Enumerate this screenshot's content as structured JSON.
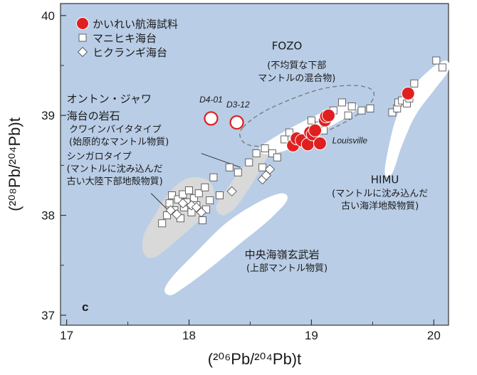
{
  "colors": {
    "plot_bg": "#b9cde6",
    "kaireii": "#e02020",
    "white_field": "#ffffff",
    "gray_field": "#d9d9d9",
    "axis": "#333333"
  },
  "chart_data": {
    "type": "scatter",
    "panel_label": "c",
    "xlabel": "(²⁰⁶Pb/²⁰⁴Pb)t",
    "ylabel": "(²⁰⁸Pb/²⁰⁴Pb)t",
    "xlim": [
      16.95,
      20.12
    ],
    "ylim": [
      36.9,
      40.12
    ],
    "x_ticks": [
      17,
      18,
      19,
      20
    ],
    "x_tick_labels": [
      "17",
      "18",
      "19",
      "20"
    ],
    "y_ticks": [
      37,
      38,
      39,
      40
    ],
    "y_tick_labels": [
      "37",
      "38",
      "39",
      "40"
    ],
    "legend": [
      {
        "label": "かいれい航海試料",
        "marker": "filled-circle-red"
      },
      {
        "label": "マニヒキ海台",
        "marker": "open-square"
      },
      {
        "label": "ヒクランギ海台",
        "marker": "open-diamond"
      }
    ],
    "series": [
      {
        "name": "かいれい航海試料",
        "marker": "circle",
        "points": [
          [
            18.85,
            38.7
          ],
          [
            18.88,
            38.77
          ],
          [
            18.92,
            38.75
          ],
          [
            18.97,
            38.71
          ],
          [
            18.99,
            38.83
          ],
          [
            19.01,
            38.81
          ],
          [
            19.03,
            38.85
          ],
          [
            19.07,
            38.72
          ],
          [
            19.11,
            38.95
          ],
          [
            19.12,
            38.99
          ],
          [
            19.14,
            39.0
          ],
          [
            19.79,
            39.22
          ]
        ],
        "open_points": [
          [
            18.18,
            38.97
          ],
          [
            18.39,
            38.93
          ]
        ]
      },
      {
        "name": "マニヒキ海台",
        "marker": "square",
        "points": [
          [
            17.78,
            37.92
          ],
          [
            17.82,
            38.0
          ],
          [
            17.84,
            38.12
          ],
          [
            17.86,
            38.2
          ],
          [
            17.88,
            38.05
          ],
          [
            17.91,
            38.16
          ],
          [
            17.93,
            37.97
          ],
          [
            17.95,
            38.21
          ],
          [
            17.96,
            38.08
          ],
          [
            17.98,
            38.13
          ],
          [
            18.0,
            38.25
          ],
          [
            18.02,
            38.03
          ],
          [
            18.04,
            38.17
          ],
          [
            18.06,
            38.1
          ],
          [
            18.08,
            38.22
          ],
          [
            18.11,
            37.95
          ],
          [
            18.14,
            38.06
          ],
          [
            18.17,
            38.15
          ],
          [
            18.13,
            38.28
          ],
          [
            18.2,
            38.38
          ],
          [
            18.25,
            38.2
          ],
          [
            18.33,
            38.48
          ],
          [
            18.4,
            38.43
          ],
          [
            18.49,
            38.53
          ],
          [
            18.55,
            38.62
          ],
          [
            18.6,
            38.48
          ],
          [
            18.62,
            38.67
          ],
          [
            18.68,
            38.62
          ],
          [
            18.72,
            38.58
          ],
          [
            18.78,
            38.76
          ],
          [
            18.82,
            38.83
          ],
          [
            19.0,
            38.95
          ],
          [
            19.06,
            38.9
          ],
          [
            19.1,
            38.85
          ],
          [
            19.18,
            39.05
          ],
          [
            19.25,
            39.13
          ],
          [
            19.3,
            39.0
          ],
          [
            19.33,
            39.09
          ],
          [
            19.41,
            39.05
          ],
          [
            19.48,
            39.07
          ],
          [
            19.66,
            39.03
          ],
          [
            19.7,
            39.07
          ],
          [
            19.71,
            39.13
          ],
          [
            19.74,
            39.15
          ],
          [
            19.78,
            39.12
          ],
          [
            19.8,
            39.17
          ],
          [
            19.84,
            39.32
          ],
          [
            20.02,
            39.55
          ],
          [
            20.07,
            39.48
          ]
        ]
      },
      {
        "name": "ヒクランギ海台",
        "marker": "diamond",
        "points": [
          [
            17.85,
            38.05
          ],
          [
            17.9,
            38.01
          ],
          [
            17.95,
            38.12
          ],
          [
            18.02,
            38.1
          ],
          [
            18.06,
            38.08
          ],
          [
            18.1,
            38.03
          ],
          [
            18.35,
            38.24
          ],
          [
            18.6,
            38.36
          ],
          [
            18.63,
            38.4
          ],
          [
            18.66,
            38.46
          ]
        ]
      }
    ],
    "point_labels": [
      {
        "text": "D4-01",
        "x": 18.18,
        "y": 39.13
      },
      {
        "text": "D3-12",
        "x": 18.4,
        "y": 39.08
      }
    ],
    "annotations": [
      {
        "lines": [
          "FOZO"
        ],
        "x": 18.8,
        "y": 39.66,
        "size": "lg",
        "anchor": "middle"
      },
      {
        "lines": [
          "(不均質な下部",
          "マントルの混合物)"
        ],
        "x": 18.88,
        "y": 39.47,
        "size": "md",
        "anchor": "middle",
        "line_h": 0.125
      },
      {
        "lines": [
          "オントン・ジャワ",
          "海台の岩石"
        ],
        "x": 17.0,
        "y": 39.13,
        "size": "lg",
        "anchor": "start",
        "line_h": 0.17
      },
      {
        "lines": [
          "クワインバイタタイプ",
          "(始原的なマントル物質)"
        ],
        "x": 17.02,
        "y": 38.83,
        "size": "md",
        "anchor": "start",
        "line_h": 0.125
      },
      {
        "lines": [
          "シンガロタイプ",
          "(マントルに沈み込んだ",
          "古い大陸下部地殻物質)"
        ],
        "x": 17.0,
        "y": 38.56,
        "size": "md",
        "anchor": "start",
        "line_h": 0.125
      },
      {
        "lines": [
          "Louisville"
        ],
        "x": 19.17,
        "y": 38.72,
        "size": "it",
        "anchor": "start"
      },
      {
        "lines": [
          "HIMU"
        ],
        "x": 19.6,
        "y": 38.32,
        "size": "lg",
        "anchor": "middle"
      },
      {
        "lines": [
          "(マントルに沈み込んだ",
          "古い海洋地殻物質)"
        ],
        "x": 19.56,
        "y": 38.19,
        "size": "md",
        "anchor": "middle",
        "line_h": 0.125
      },
      {
        "lines": [
          "中央海嶺玄武岩"
        ],
        "x": 18.76,
        "y": 37.57,
        "size": "lg",
        "anchor": "middle"
      },
      {
        "lines": [
          "(上部マントル物質)"
        ],
        "x": 18.8,
        "y": 37.44,
        "size": "md",
        "anchor": "middle"
      }
    ],
    "fields": [
      {
        "name": "FOZO",
        "style": "dashed-ellipse",
        "outline": [
          [
            18.44,
            38.88
          ],
          [
            18.6,
            39.03
          ],
          [
            18.85,
            39.17
          ],
          [
            19.1,
            39.27
          ],
          [
            19.35,
            39.3
          ],
          [
            19.5,
            39.25
          ],
          [
            19.48,
            39.12
          ],
          [
            19.3,
            38.95
          ],
          [
            19.0,
            38.78
          ],
          [
            18.75,
            38.7
          ],
          [
            18.5,
            38.7
          ],
          [
            18.42,
            38.78
          ]
        ]
      },
      {
        "name": "Louisville",
        "style": "white",
        "outline": [
          [
            18.58,
            38.68
          ],
          [
            18.75,
            38.82
          ],
          [
            18.95,
            38.95
          ],
          [
            19.15,
            39.06
          ],
          [
            19.32,
            39.12
          ],
          [
            19.38,
            39.08
          ],
          [
            19.28,
            38.98
          ],
          [
            19.1,
            38.85
          ],
          [
            18.9,
            38.7
          ],
          [
            18.7,
            38.62
          ],
          [
            18.6,
            38.62
          ]
        ]
      },
      {
        "name": "HIMU",
        "style": "white",
        "outline": [
          [
            19.6,
            38.42
          ],
          [
            19.63,
            38.68
          ],
          [
            19.7,
            39.0
          ],
          [
            19.82,
            39.27
          ],
          [
            19.98,
            39.47
          ],
          [
            20.1,
            39.55
          ],
          [
            20.12,
            39.45
          ],
          [
            20.0,
            39.25
          ],
          [
            19.85,
            39.0
          ],
          [
            19.74,
            38.7
          ],
          [
            19.66,
            38.42
          ]
        ]
      },
      {
        "name": "MORB",
        "style": "white",
        "outline": [
          [
            17.8,
            37.25
          ],
          [
            17.86,
            37.38
          ],
          [
            18.05,
            37.62
          ],
          [
            18.3,
            37.92
          ],
          [
            18.55,
            38.12
          ],
          [
            18.75,
            38.22
          ],
          [
            18.8,
            38.15
          ],
          [
            18.65,
            37.95
          ],
          [
            18.4,
            37.7
          ],
          [
            18.15,
            37.45
          ],
          [
            17.95,
            37.27
          ],
          [
            17.85,
            37.2
          ]
        ]
      },
      {
        "name": "Kwaimbaita",
        "style": "gray",
        "outline": [
          [
            18.22,
            38.08
          ],
          [
            18.3,
            38.25
          ],
          [
            18.42,
            38.45
          ],
          [
            18.55,
            38.62
          ],
          [
            18.65,
            38.63
          ],
          [
            18.58,
            38.45
          ],
          [
            18.48,
            38.25
          ],
          [
            18.38,
            38.08
          ],
          [
            18.28,
            38.0
          ]
        ]
      },
      {
        "name": "Singgalo",
        "style": "gray",
        "outline": [
          [
            17.63,
            37.62
          ],
          [
            17.63,
            37.8
          ],
          [
            17.72,
            38.0
          ],
          [
            17.82,
            38.2
          ],
          [
            17.95,
            38.35
          ],
          [
            18.08,
            38.38
          ],
          [
            18.18,
            38.32
          ],
          [
            18.2,
            38.15
          ],
          [
            18.08,
            37.95
          ],
          [
            17.9,
            37.75
          ],
          [
            17.72,
            37.58
          ]
        ]
      }
    ],
    "leaders": [
      {
        "from": [
          18.1,
          38.62
        ],
        "to": [
          18.42,
          38.48
        ]
      },
      {
        "from": [
          17.69,
          38.22
        ],
        "to": [
          17.83,
          38.05
        ]
      }
    ],
    "grid": false
  }
}
